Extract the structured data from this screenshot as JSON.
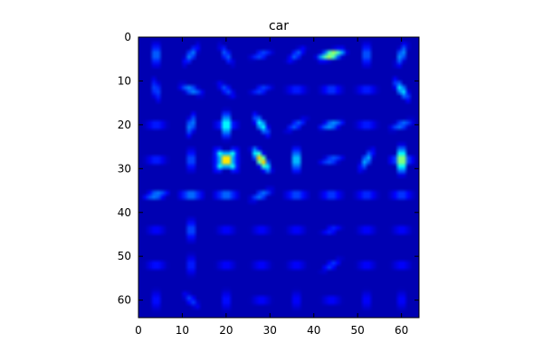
{
  "chart_data": {
    "type": "heatmap",
    "title": "car",
    "xlabel": "",
    "ylabel": "",
    "xlim": [
      0,
      64
    ],
    "ylim": [
      64,
      0
    ],
    "grid": false,
    "colormap": "jet",
    "colormap_stops": [
      "#00007f",
      "#0000ff",
      "#007fff",
      "#00ffff",
      "#7fff7f",
      "#ffff00",
      "#ff7f00",
      "#ff0000",
      "#7f0000"
    ],
    "background_value": 0.05,
    "cells": 8,
    "cell_size": 8,
    "xticks": [
      0,
      10,
      20,
      30,
      40,
      50,
      60
    ],
    "yticks": [
      0,
      10,
      20,
      30,
      40,
      50,
      60
    ],
    "xtick_labels": [
      "0",
      "10",
      "20",
      "30",
      "40",
      "50",
      "60"
    ],
    "ytick_labels": [
      "0",
      "10",
      "20",
      "30",
      "40",
      "50",
      "60"
    ],
    "hog_cells": [
      {
        "row": 0,
        "col": 0,
        "angles": [
          90
        ],
        "strengths": [
          0.32
        ]
      },
      {
        "row": 0,
        "col": 1,
        "angles": [
          55
        ],
        "strengths": [
          0.3
        ]
      },
      {
        "row": 0,
        "col": 2,
        "angles": [
          120
        ],
        "strengths": [
          0.26
        ]
      },
      {
        "row": 0,
        "col": 3,
        "angles": [
          20
        ],
        "strengths": [
          0.25
        ]
      },
      {
        "row": 0,
        "col": 4,
        "angles": [
          40
        ],
        "strengths": [
          0.26
        ]
      },
      {
        "row": 0,
        "col": 5,
        "angles": [
          15
        ],
        "strengths": [
          0.72
        ]
      },
      {
        "row": 0,
        "col": 6,
        "angles": [
          90
        ],
        "strengths": [
          0.3
        ]
      },
      {
        "row": 0,
        "col": 7,
        "angles": [
          70
        ],
        "strengths": [
          0.34
        ]
      },
      {
        "row": 1,
        "col": 0,
        "angles": [
          100
        ],
        "strengths": [
          0.26
        ]
      },
      {
        "row": 1,
        "col": 1,
        "angles": [
          160
        ],
        "strengths": [
          0.33
        ]
      },
      {
        "row": 1,
        "col": 2,
        "angles": [
          140
        ],
        "strengths": [
          0.24
        ]
      },
      {
        "row": 1,
        "col": 3,
        "angles": [
          20
        ],
        "strengths": [
          0.24
        ]
      },
      {
        "row": 1,
        "col": 4,
        "angles": [
          0
        ],
        "strengths": [
          0.22
        ]
      },
      {
        "row": 1,
        "col": 5,
        "angles": [
          0
        ],
        "strengths": [
          0.25
        ]
      },
      {
        "row": 1,
        "col": 6,
        "angles": [
          0
        ],
        "strengths": [
          0.22
        ]
      },
      {
        "row": 1,
        "col": 7,
        "angles": [
          125
        ],
        "strengths": [
          0.42
        ]
      },
      {
        "row": 2,
        "col": 0,
        "angles": [
          0
        ],
        "strengths": [
          0.22
        ]
      },
      {
        "row": 2,
        "col": 1,
        "angles": [
          75
        ],
        "strengths": [
          0.33
        ]
      },
      {
        "row": 2,
        "col": 2,
        "angles": [
          90,
          0
        ],
        "strengths": [
          0.55,
          0.3
        ]
      },
      {
        "row": 2,
        "col": 3,
        "angles": [
          125
        ],
        "strengths": [
          0.45
        ]
      },
      {
        "row": 2,
        "col": 4,
        "angles": [
          30
        ],
        "strengths": [
          0.26
        ]
      },
      {
        "row": 2,
        "col": 5,
        "angles": [
          15
        ],
        "strengths": [
          0.36
        ]
      },
      {
        "row": 2,
        "col": 6,
        "angles": [
          0
        ],
        "strengths": [
          0.22
        ]
      },
      {
        "row": 2,
        "col": 7,
        "angles": [
          20
        ],
        "strengths": [
          0.3
        ]
      },
      {
        "row": 3,
        "col": 0,
        "angles": [
          0
        ],
        "strengths": [
          0.22
        ]
      },
      {
        "row": 3,
        "col": 1,
        "angles": [
          90
        ],
        "strengths": [
          0.28
        ]
      },
      {
        "row": 3,
        "col": 2,
        "angles": [
          45,
          135,
          0
        ],
        "strengths": [
          0.78,
          0.78,
          0.45
        ]
      },
      {
        "row": 3,
        "col": 3,
        "angles": [
          125
        ],
        "strengths": [
          0.82
        ]
      },
      {
        "row": 3,
        "col": 4,
        "angles": [
          90
        ],
        "strengths": [
          0.46
        ]
      },
      {
        "row": 3,
        "col": 5,
        "angles": [
          15
        ],
        "strengths": [
          0.28
        ]
      },
      {
        "row": 3,
        "col": 6,
        "angles": [
          60
        ],
        "strengths": [
          0.36
        ]
      },
      {
        "row": 3,
        "col": 7,
        "angles": [
          90,
          0
        ],
        "strengths": [
          0.75,
          0.38
        ]
      },
      {
        "row": 4,
        "col": 0,
        "angles": [
          10
        ],
        "strengths": [
          0.34
        ]
      },
      {
        "row": 4,
        "col": 1,
        "angles": [
          0
        ],
        "strengths": [
          0.34
        ]
      },
      {
        "row": 4,
        "col": 2,
        "angles": [
          0
        ],
        "strengths": [
          0.33
        ]
      },
      {
        "row": 4,
        "col": 3,
        "angles": [
          25
        ],
        "strengths": [
          0.3
        ]
      },
      {
        "row": 4,
        "col": 4,
        "angles": [
          0
        ],
        "strengths": [
          0.28
        ]
      },
      {
        "row": 4,
        "col": 5,
        "angles": [
          0
        ],
        "strengths": [
          0.26
        ]
      },
      {
        "row": 4,
        "col": 6,
        "angles": [
          0
        ],
        "strengths": [
          0.24
        ]
      },
      {
        "row": 4,
        "col": 7,
        "angles": [
          0
        ],
        "strengths": [
          0.26
        ]
      },
      {
        "row": 5,
        "col": 0,
        "angles": [
          0
        ],
        "strengths": [
          0.18
        ]
      },
      {
        "row": 5,
        "col": 1,
        "angles": [
          90
        ],
        "strengths": [
          0.28
        ]
      },
      {
        "row": 5,
        "col": 2,
        "angles": [
          0
        ],
        "strengths": [
          0.18
        ]
      },
      {
        "row": 5,
        "col": 3,
        "angles": [
          0
        ],
        "strengths": [
          0.18
        ]
      },
      {
        "row": 5,
        "col": 4,
        "angles": [
          0
        ],
        "strengths": [
          0.18
        ]
      },
      {
        "row": 5,
        "col": 5,
        "angles": [
          20
        ],
        "strengths": [
          0.2
        ]
      },
      {
        "row": 5,
        "col": 6,
        "angles": [
          0
        ],
        "strengths": [
          0.18
        ]
      },
      {
        "row": 5,
        "col": 7,
        "angles": [
          0
        ],
        "strengths": [
          0.18
        ]
      },
      {
        "row": 6,
        "col": 0,
        "angles": [
          0
        ],
        "strengths": [
          0.2
        ]
      },
      {
        "row": 6,
        "col": 1,
        "angles": [
          90
        ],
        "strengths": [
          0.22
        ]
      },
      {
        "row": 6,
        "col": 2,
        "angles": [
          0
        ],
        "strengths": [
          0.18
        ]
      },
      {
        "row": 6,
        "col": 3,
        "angles": [
          0
        ],
        "strengths": [
          0.18
        ]
      },
      {
        "row": 6,
        "col": 4,
        "angles": [
          0
        ],
        "strengths": [
          0.18
        ]
      },
      {
        "row": 6,
        "col": 5,
        "angles": [
          30
        ],
        "strengths": [
          0.22
        ]
      },
      {
        "row": 6,
        "col": 6,
        "angles": [
          0
        ],
        "strengths": [
          0.18
        ]
      },
      {
        "row": 6,
        "col": 7,
        "angles": [
          0
        ],
        "strengths": [
          0.18
        ]
      },
      {
        "row": 7,
        "col": 0,
        "angles": [
          90
        ],
        "strengths": [
          0.2
        ]
      },
      {
        "row": 7,
        "col": 1,
        "angles": [
          135
        ],
        "strengths": [
          0.22
        ]
      },
      {
        "row": 7,
        "col": 2,
        "angles": [
          90
        ],
        "strengths": [
          0.2
        ]
      },
      {
        "row": 7,
        "col": 3,
        "angles": [
          0
        ],
        "strengths": [
          0.18
        ]
      },
      {
        "row": 7,
        "col": 4,
        "angles": [
          90
        ],
        "strengths": [
          0.18
        ]
      },
      {
        "row": 7,
        "col": 5,
        "angles": [
          0
        ],
        "strengths": [
          0.18
        ]
      },
      {
        "row": 7,
        "col": 6,
        "angles": [
          90
        ],
        "strengths": [
          0.18
        ]
      },
      {
        "row": 7,
        "col": 7,
        "angles": [
          90
        ],
        "strengths": [
          0.18
        ]
      }
    ]
  }
}
